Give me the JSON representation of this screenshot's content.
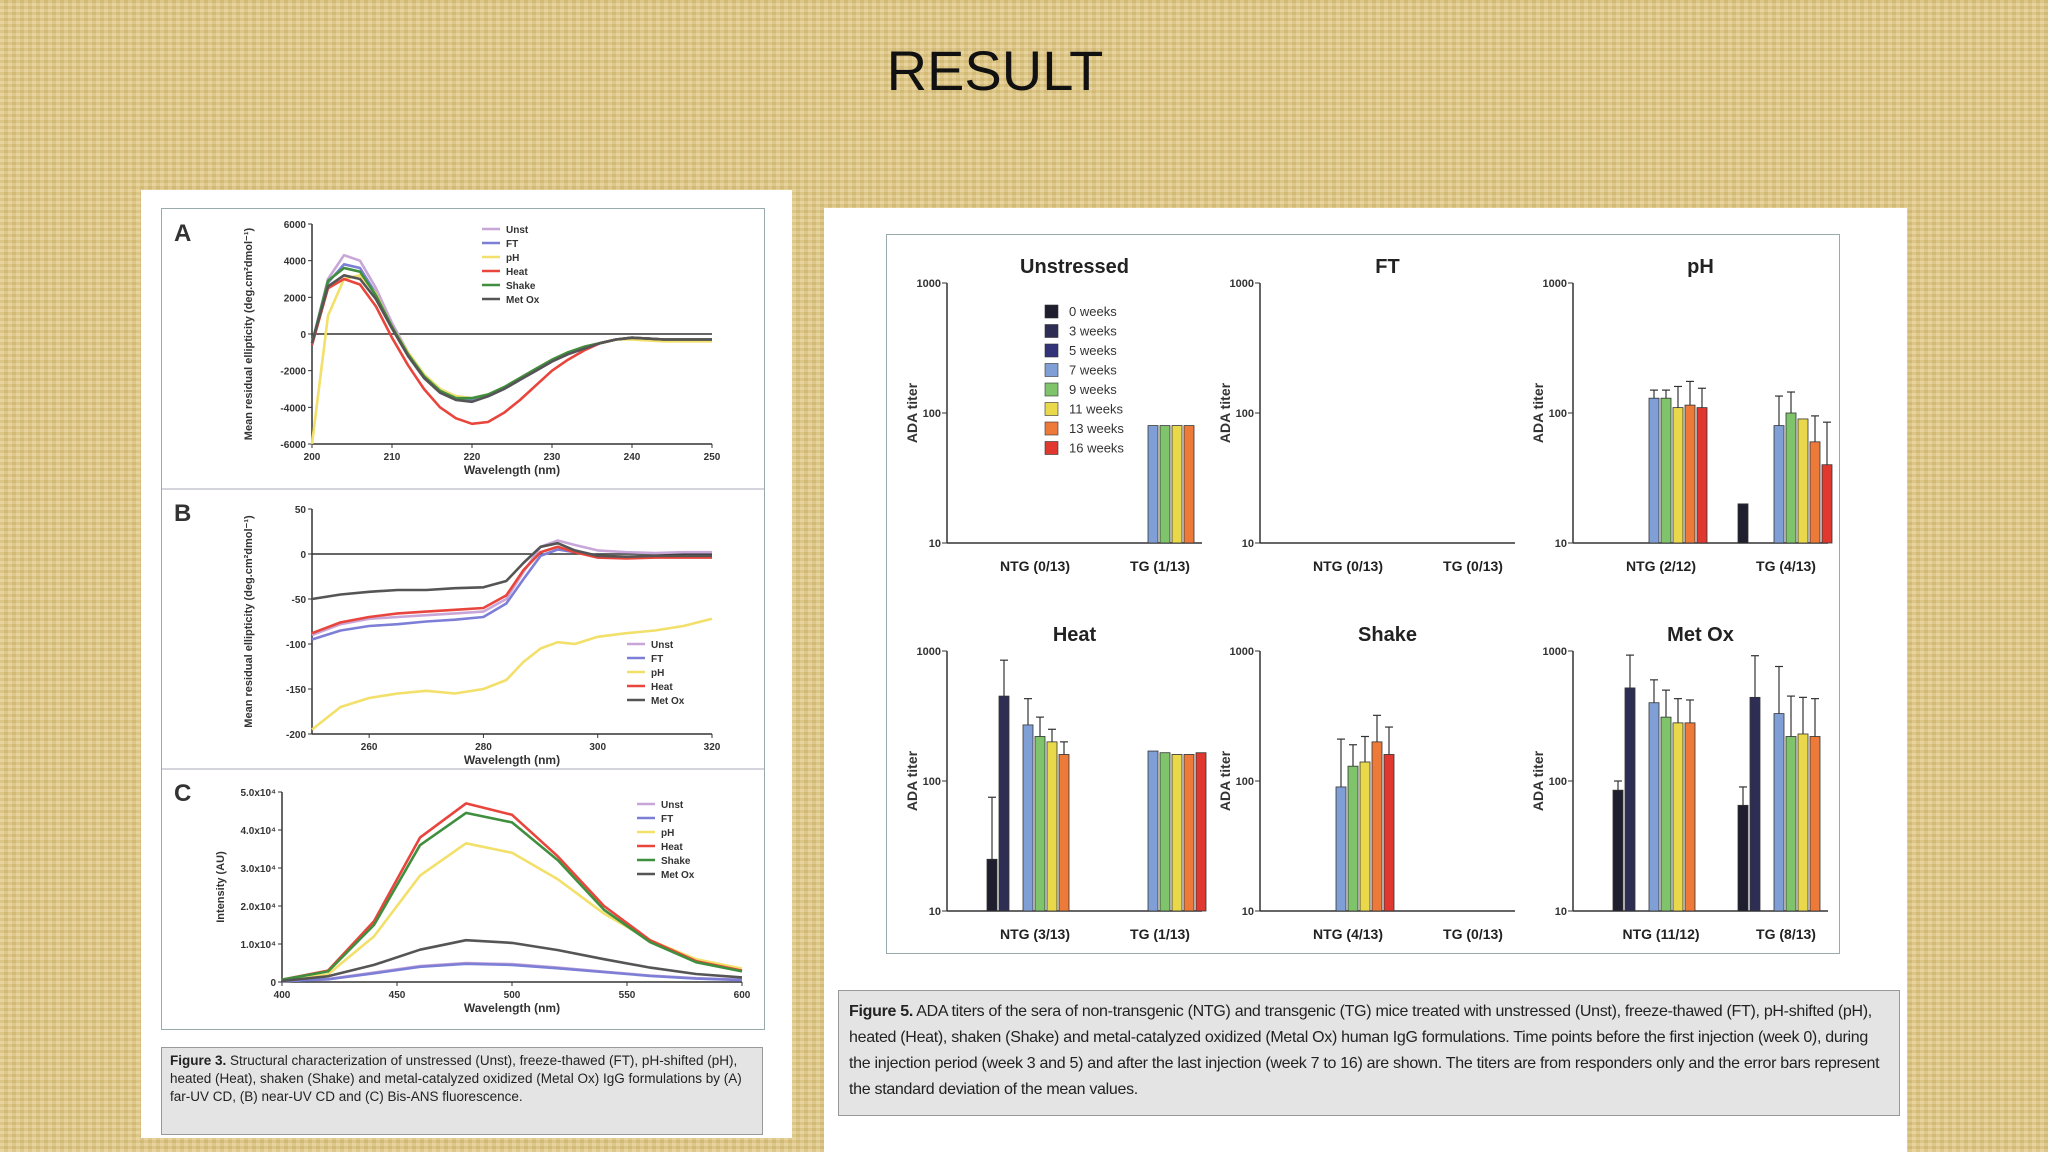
{
  "slide": {
    "title": "RESULT"
  },
  "figure3": {
    "caption_label": "Figure 3.",
    "caption_text": "Structural characterization of unstressed (Unst), freeze-thawed (FT), pH-shifted (pH), heated (Heat), shaken (Shake) and metal-catalyzed oxidized (Metal Ox) IgG formulations by (A) far-UV CD, (B) near-UV CD and (C) Bis-ANS fluorescence.",
    "colors": {
      "Unst": "#c9a6d8",
      "FT": "#7d7fd6",
      "pH": "#f2e06a",
      "Heat": "#e8453c",
      "Shake": "#3f8f3f",
      "Met Ox": "#555555"
    }
  },
  "figure5": {
    "caption_label": "Figure 5.",
    "caption_text": "ADA titers of the sera of non-transgenic (NTG) and transgenic (TG) mice treated with unstressed (Unst), freeze-thawed (FT), pH-shifted (pH), heated (Heat), shaken (Shake) and metal-catalyzed oxidized (Metal Ox) human IgG formulations. Time points before the first injection (week 0), during the injection period (week 3 and 5) and after the last injection (week 7 to 16) are shown. The titers are from responders only and the error bars represent the standard deviation of the mean values.",
    "week_colors": [
      "#1e1e2e",
      "#2e2e55",
      "#33337a",
      "#7f9fd6",
      "#7fc46a",
      "#e8d84a",
      "#ee7a3a",
      "#e0382e"
    ],
    "week_labels": [
      "0 weeks",
      "3 weeks",
      "5 weeks",
      "7 weeks",
      "9 weeks",
      "11 weeks",
      "13 weeks",
      "16 weeks"
    ]
  },
  "chart_data": [
    {
      "panel": "A",
      "type": "line",
      "xlabel": "Wavelength (nm)",
      "ylabel": "Mean residual ellipticity (deg.cm²dmol⁻¹)",
      "xlim": [
        200,
        250
      ],
      "ylim": [
        -6000,
        6000
      ],
      "xticks": [
        "200",
        "210",
        "220",
        "230",
        "240",
        "250"
      ],
      "yticks": [
        "-6000",
        "-4000",
        "-2000",
        "0",
        "2000",
        "4000",
        "6000"
      ],
      "legend": [
        "Unst",
        "FT",
        "pH",
        "Heat",
        "Shake",
        "Met Ox"
      ],
      "legend_position": "top-right",
      "x": [
        200,
        202,
        204,
        206,
        208,
        210,
        212,
        214,
        216,
        218,
        220,
        222,
        224,
        226,
        228,
        230,
        232,
        234,
        236,
        238,
        240,
        242,
        244,
        246,
        248,
        250
      ],
      "series": [
        {
          "name": "Unst",
          "values": [
            -500,
            3000,
            4300,
            4000,
            2500,
            600,
            -1000,
            -2200,
            -3000,
            -3400,
            -3500,
            -3300,
            -2900,
            -2400,
            -1900,
            -1400,
            -1000,
            -700,
            -500,
            -300,
            -200,
            -250,
            -300,
            -300,
            -300,
            -300
          ]
        },
        {
          "name": "FT",
          "values": [
            -500,
            2800,
            3800,
            3600,
            2200,
            400,
            -1100,
            -2300,
            -3100,
            -3500,
            -3600,
            -3400,
            -3000,
            -2500,
            -2000,
            -1500,
            -1100,
            -800,
            -500,
            -300,
            -200,
            -250,
            -300,
            -300,
            -300,
            -300
          ]
        },
        {
          "name": "pH",
          "values": [
            -6000,
            1000,
            3000,
            3200,
            2200,
            400,
            -1000,
            -2200,
            -3000,
            -3400,
            -3500,
            -3300,
            -2900,
            -2400,
            -1900,
            -1400,
            -1000,
            -700,
            -500,
            -300,
            -300,
            -350,
            -400,
            -400,
            -400,
            -400
          ]
        },
        {
          "name": "Heat",
          "values": [
            -600,
            2500,
            3000,
            2700,
            1500,
            -200,
            -1700,
            -3000,
            -4000,
            -4600,
            -4900,
            -4800,
            -4300,
            -3600,
            -2800,
            -2000,
            -1400,
            -900,
            -500,
            -300,
            -200,
            -250,
            -300,
            -300,
            -300,
            -300
          ]
        },
        {
          "name": "Shake",
          "values": [
            -500,
            2900,
            3600,
            3400,
            2100,
            400,
            -1100,
            -2300,
            -3100,
            -3500,
            -3500,
            -3300,
            -2900,
            -2400,
            -1900,
            -1400,
            -1000,
            -700,
            -500,
            -300,
            -200,
            -250,
            -300,
            -300,
            -300,
            -300
          ]
        },
        {
          "name": "Met Ox",
          "values": [
            -500,
            2600,
            3200,
            3000,
            1900,
            300,
            -1200,
            -2400,
            -3200,
            -3600,
            -3700,
            -3400,
            -3000,
            -2500,
            -2000,
            -1500,
            -1100,
            -800,
            -500,
            -300,
            -200,
            -250,
            -300,
            -300,
            -300,
            -300
          ]
        }
      ]
    },
    {
      "panel": "B",
      "type": "line",
      "xlabel": "Wavelength (nm)",
      "ylabel": "Mean residual ellipticity (deg.cm²dmol⁻¹)",
      "xlim": [
        250,
        320
      ],
      "ylim": [
        -200,
        50
      ],
      "xticks": [
        "260",
        "280",
        "300",
        "320"
      ],
      "yticks": [
        "-200",
        "-150",
        "-100",
        "-50",
        "0",
        "50"
      ],
      "legend": [
        "Unst",
        "FT",
        "pH",
        "Heat",
        "Met Ox"
      ],
      "legend_position": "bottom-right",
      "x": [
        250,
        255,
        260,
        265,
        270,
        275,
        280,
        284,
        287,
        290,
        293,
        296,
        300,
        305,
        310,
        315,
        320
      ],
      "series": [
        {
          "name": "Unst",
          "values": [
            -90,
            -78,
            -72,
            -70,
            -68,
            -66,
            -64,
            -50,
            -20,
            8,
            15,
            10,
            4,
            2,
            1,
            2,
            2
          ]
        },
        {
          "name": "FT",
          "values": [
            -95,
            -85,
            -80,
            -78,
            -75,
            -73,
            -70,
            -55,
            -28,
            -2,
            5,
            2,
            -3,
            -4,
            -3,
            -3,
            -3
          ]
        },
        {
          "name": "pH",
          "values": [
            -195,
            -170,
            -160,
            -155,
            -152,
            -155,
            -150,
            -140,
            -120,
            -105,
            -98,
            -100,
            -92,
            -88,
            -85,
            -80,
            -72
          ]
        },
        {
          "name": "Heat",
          "values": [
            -88,
            -76,
            -70,
            -66,
            -64,
            -62,
            -60,
            -46,
            -18,
            2,
            8,
            2,
            -4,
            -5,
            -4,
            -4,
            -4
          ]
        },
        {
          "name": "Met Ox",
          "values": [
            -50,
            -45,
            -42,
            -40,
            -40,
            -38,
            -37,
            -30,
            -10,
            8,
            12,
            4,
            -2,
            -3,
            -2,
            -2,
            -2
          ]
        }
      ]
    },
    {
      "panel": "C",
      "type": "line",
      "xlabel": "Wavelength (nm)",
      "ylabel": "Intensity (AU)",
      "xlim": [
        400,
        600
      ],
      "ylim": [
        0,
        50000
      ],
      "xticks": [
        "400",
        "450",
        "500",
        "550",
        "600"
      ],
      "yticks": [
        "0",
        "1.0x10⁴",
        "2.0x10⁴",
        "3.0x10⁴",
        "4.0x10⁴",
        "5.0x10⁴"
      ],
      "legend": [
        "Unst",
        "FT",
        "pH",
        "Heat",
        "Shake",
        "Met Ox"
      ],
      "legend_position": "top-right",
      "x": [
        400,
        420,
        440,
        460,
        480,
        500,
        520,
        540,
        560,
        580,
        600
      ],
      "series": [
        {
          "name": "Unst",
          "values": [
            200,
            800,
            2500,
            4200,
            5000,
            4700,
            3800,
            2700,
            1700,
            1000,
            600
          ]
        },
        {
          "name": "FT",
          "values": [
            200,
            700,
            2300,
            4000,
            4800,
            4500,
            3600,
            2600,
            1600,
            900,
            500
          ]
        },
        {
          "name": "pH",
          "values": [
            500,
            2000,
            12000,
            28000,
            36500,
            34000,
            27000,
            18000,
            11000,
            6000,
            3500
          ]
        },
        {
          "name": "Heat",
          "values": [
            600,
            3000,
            16000,
            38000,
            47000,
            44000,
            33000,
            20000,
            11000,
            5500,
            3000
          ]
        },
        {
          "name": "Shake",
          "values": [
            600,
            2800,
            15000,
            36000,
            44500,
            42000,
            32000,
            19000,
            10500,
            5200,
            2800
          ]
        },
        {
          "name": "Met Ox",
          "values": [
            300,
            1500,
            4500,
            8500,
            11000,
            10300,
            8400,
            6000,
            3800,
            2100,
            1200
          ]
        }
      ]
    },
    {
      "panel": "Unstressed",
      "type": "bar",
      "yscale": "log",
      "ylim": [
        10,
        1000
      ],
      "ylabel": "ADA titer",
      "groups": [
        "NTG (0/13)",
        "TG (1/13)"
      ],
      "series_names": [
        "0 weeks",
        "3 weeks",
        "5 weeks",
        "7 weeks",
        "9 weeks",
        "11 weeks",
        "13 weeks",
        "16 weeks"
      ],
      "values": [
        [
          null,
          null,
          null,
          null,
          null,
          null,
          null,
          null
        ],
        [
          null,
          null,
          null,
          80,
          80,
          80,
          80,
          null
        ]
      ],
      "errors": [
        [
          null,
          null,
          null,
          null,
          null,
          null,
          null,
          null
        ],
        [
          null,
          null,
          null,
          0,
          0,
          0,
          0,
          null
        ]
      ]
    },
    {
      "panel": "FT",
      "type": "bar",
      "yscale": "log",
      "ylim": [
        10,
        1000
      ],
      "ylabel": "ADA titer",
      "groups": [
        "NTG (0/13)",
        "TG (0/13)"
      ],
      "values": [
        [
          null,
          null,
          null,
          null,
          null,
          null,
          null,
          null
        ],
        [
          null,
          null,
          null,
          null,
          null,
          null,
          null,
          null
        ]
      ],
      "errors": [
        [
          null,
          null,
          null,
          null,
          null,
          null,
          null,
          null
        ],
        [
          null,
          null,
          null,
          null,
          null,
          null,
          null,
          null
        ]
      ]
    },
    {
      "panel": "pH",
      "type": "bar",
      "yscale": "log",
      "ylim": [
        10,
        1000
      ],
      "ylabel": "ADA titer",
      "groups": [
        "NTG (2/12)",
        "TG (4/13)"
      ],
      "values": [
        [
          null,
          null,
          null,
          130,
          130,
          110,
          115,
          110
        ],
        [
          20,
          null,
          null,
          80,
          100,
          90,
          60,
          40
        ]
      ],
      "errors": [
        [
          null,
          null,
          null,
          150,
          150,
          160,
          175,
          155
        ],
        [
          null,
          null,
          null,
          135,
          145,
          null,
          95,
          85
        ]
      ]
    },
    {
      "panel": "Heat",
      "type": "bar",
      "yscale": "log",
      "ylim": [
        10,
        1000
      ],
      "ylabel": "ADA titer",
      "groups": [
        "NTG (3/13)",
        "TG (1/13)"
      ],
      "values": [
        [
          25,
          450,
          null,
          270,
          220,
          200,
          160,
          null
        ],
        [
          null,
          null,
          null,
          170,
          165,
          160,
          160,
          165
        ]
      ],
      "errors": [
        [
          75,
          850,
          null,
          430,
          310,
          250,
          200,
          null
        ],
        [
          null,
          null,
          null,
          0,
          0,
          0,
          0,
          0
        ]
      ]
    },
    {
      "panel": "Shake",
      "type": "bar",
      "yscale": "log",
      "ylim": [
        10,
        1000
      ],
      "ylabel": "ADA titer",
      "groups": [
        "NTG (4/13)",
        "TG (0/13)"
      ],
      "values": [
        [
          null,
          null,
          null,
          90,
          130,
          140,
          200,
          160
        ],
        [
          null,
          null,
          null,
          null,
          null,
          null,
          null,
          null
        ]
      ],
      "errors": [
        [
          null,
          null,
          null,
          210,
          190,
          220,
          320,
          260
        ],
        [
          null,
          null,
          null,
          null,
          null,
          null,
          null,
          null
        ]
      ]
    },
    {
      "panel": "Met Ox",
      "type": "bar",
      "yscale": "log",
      "ylim": [
        10,
        1000
      ],
      "ylabel": "ADA titer",
      "groups": [
        "NTG (11/12)",
        "TG (8/13)"
      ],
      "values": [
        [
          85,
          520,
          null,
          400,
          310,
          280,
          280,
          null
        ],
        [
          65,
          440,
          null,
          330,
          220,
          230,
          220,
          null
        ]
      ],
      "errors": [
        [
          100,
          930,
          null,
          600,
          500,
          430,
          420,
          null
        ],
        [
          90,
          920,
          null,
          760,
          450,
          440,
          430,
          null
        ]
      ]
    }
  ]
}
